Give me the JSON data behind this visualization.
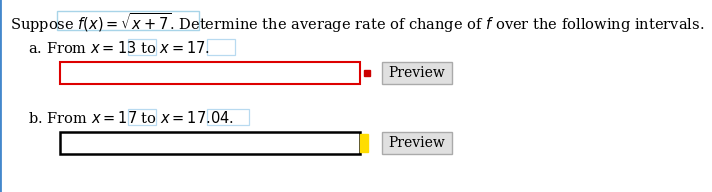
{
  "bg_color": "#ffffff",
  "text_color": "#000000",
  "title_line1": "Suppose $f(x) = \\sqrt{x + 7}$. Determine the average rate of change of $f$ over the following intervals.",
  "line_a": "a. From $x = 13$ to $x = 17$.",
  "line_b": "b. From $x = 17$ to $x = 17.04$.",
  "preview_text": "Preview",
  "font_size": 10.5,
  "preview_font_size": 10,
  "fx_box_color": "#a8d4e8",
  "highlight_color": "#b8daf0",
  "input_a_edge": "#dd0000",
  "input_b_edge": "#000000",
  "red_x_color": "#cc0000",
  "yellow_color": "#ffdd00",
  "preview_bg": "#e0e0e0",
  "preview_edge": "#aaaaaa"
}
